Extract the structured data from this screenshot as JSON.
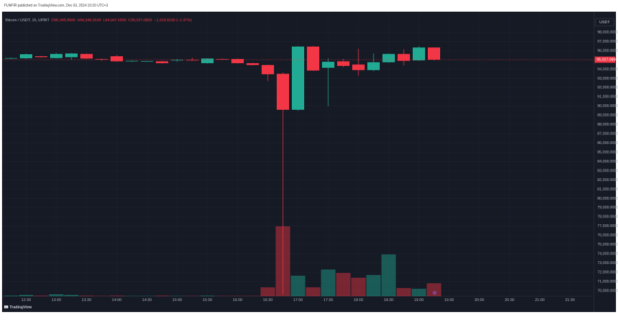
{
  "header": {
    "published": "FUNFIR published on TradingView.com, Dec 03, 2024 19:20 UTC+3"
  },
  "chart_data": {
    "type": "candlestick",
    "symbol": "Bitcoin / USDT, 15, UPBIT",
    "ohlc_labels": [
      "O96,345.8900",
      "H96,346.9100",
      "L94,947.6500",
      "C95,027.0800",
      "−1,318.8100 (−1.37%)"
    ],
    "currency": "USDT",
    "categories": [
      null,
      "12:30",
      null,
      "13:00",
      null,
      "13:30",
      null,
      "14:00",
      null,
      "14:30",
      null,
      "15:00",
      null,
      "15:30",
      null,
      "16:00",
      null,
      "16:30",
      null,
      "17:00",
      null,
      "17:30",
      null,
      "18:00",
      null,
      "18:30",
      null,
      "19:00",
      null
    ],
    "extra_time_labels": [
      "19:30",
      "20:00",
      "20:30",
      "21:00",
      "21:30"
    ],
    "open": [
      95150,
      95177,
      95400,
      95200,
      95300,
      95650,
      95100,
      95400,
      94850,
      94850,
      94850,
      94950,
      95000,
      94650,
      95100,
      95100,
      94650,
      94450,
      93500,
      89600,
      96450,
      94150,
      94850,
      94500,
      93900,
      94750,
      95650,
      94950,
      96345.89
    ],
    "high": [
      95250,
      95700,
      95450,
      95750,
      95750,
      95700,
      95150,
      95550,
      94950,
      94900,
      94900,
      95100,
      95250,
      95200,
      95150,
      95150,
      94700,
      94500,
      93650,
      96500,
      96500,
      95200,
      95100,
      96200,
      95700,
      95700,
      96150,
      96500,
      96346.91
    ],
    "low": [
      95100,
      95100,
      95250,
      95150,
      95000,
      95100,
      94900,
      94800,
      94800,
      94800,
      94600,
      94800,
      94900,
      94600,
      95050,
      94600,
      94400,
      92700,
      69600,
      89500,
      93800,
      90000,
      94200,
      93300,
      93800,
      94700,
      94400,
      94900,
      94947.65
    ],
    "close": [
      95200,
      95620,
      95300,
      95650,
      95700,
      95150,
      95050,
      94850,
      94900,
      94870,
      94650,
      95000,
      94980,
      95150,
      95080,
      94650,
      94450,
      93450,
      89600,
      96450,
      93850,
      94800,
      94350,
      93900,
      94750,
      95650,
      94900,
      96345,
      95027.08
    ],
    "volume": [
      1,
      2,
      1,
      3,
      2,
      1,
      0.5,
      1,
      0.5,
      0.5,
      1,
      0.5,
      0.5,
      1,
      0.5,
      0.5,
      0.5,
      13,
      102,
      30,
      13,
      39,
      34,
      27,
      31,
      61,
      12,
      11,
      19
    ],
    "up_color": "#22ab94",
    "down_color": "#f23645",
    "ylim": [
      69400,
      100230
    ],
    "yticks": [
      {
        "value": 98000,
        "label": "98,000.0000"
      },
      {
        "value": 97000,
        "label": "97,000.0000"
      },
      {
        "value": 96000,
        "label": "96,000.0000"
      },
      {
        "value": 94000,
        "label": "94,000.0000"
      },
      {
        "value": 93000,
        "label": "93,000.0000"
      },
      {
        "value": 92000,
        "label": "92,000.0000"
      },
      {
        "value": 91000,
        "label": "91,000.0000"
      },
      {
        "value": 90000,
        "label": "90,000.0000"
      },
      {
        "value": 89000,
        "label": "89,000.0000"
      },
      {
        "value": 88000,
        "label": "88,000.0000"
      },
      {
        "value": 87000,
        "label": "87,000.0000"
      },
      {
        "value": 86000,
        "label": "86,000.0000"
      },
      {
        "value": 85000,
        "label": "85,000.0000"
      },
      {
        "value": 84000,
        "label": "84,000.0000"
      },
      {
        "value": 83000,
        "label": "83,000.0000"
      },
      {
        "value": 82000,
        "label": "82,000.0000"
      },
      {
        "value": 81000,
        "label": "81,000.0000"
      },
      {
        "value": 80000,
        "label": "80,000.0000"
      },
      {
        "value": 79000,
        "label": "79,000.0000"
      },
      {
        "value": 78000,
        "label": "78,000.0000"
      },
      {
        "value": 77000,
        "label": "77,000.0000"
      },
      {
        "value": 76000,
        "label": "76,000.0000"
      },
      {
        "value": 75000,
        "label": "75,000.0000"
      },
      {
        "value": 74000,
        "label": "74,000.0000"
      },
      {
        "value": 73000,
        "label": "73,000.0000"
      },
      {
        "value": 72000,
        "label": "72,000.0000"
      },
      {
        "value": 71000,
        "label": "71,000.0000"
      },
      {
        "value": 70000,
        "label": "70,000.0000"
      }
    ],
    "last_price_label": "95,027.0800",
    "grid": true,
    "watermark": "TradingView"
  }
}
